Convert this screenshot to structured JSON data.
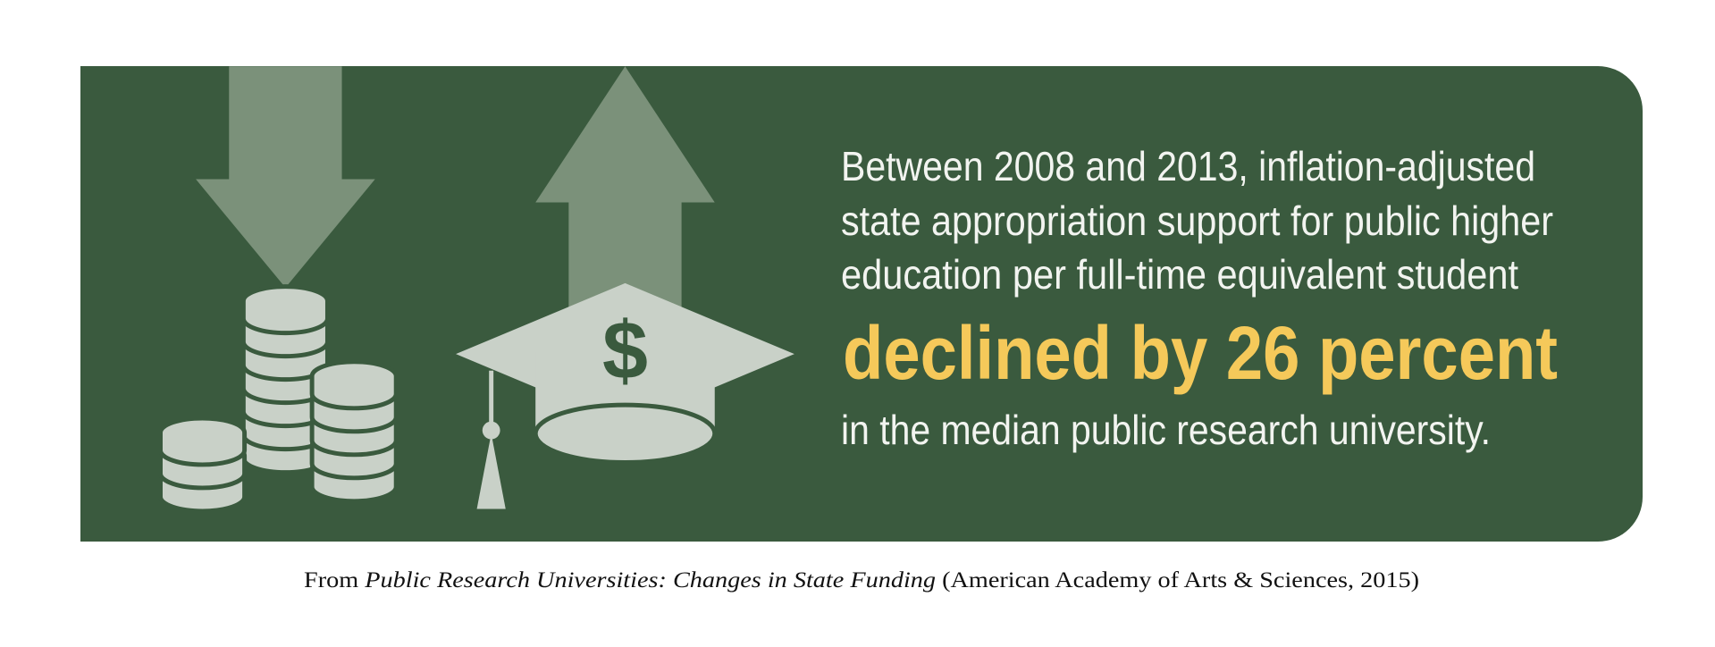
{
  "panel": {
    "icon_symbol": "$",
    "lines": [
      "Between 2008 and 2013, inflation-adjusted",
      "state appropriation support for public higher",
      "education per full-time equivalent student"
    ],
    "highlight": "declined by 26 percent",
    "closing": "in the median public research university."
  },
  "caption": {
    "prefix": "From ",
    "title": "Public Research Universities: Changes in State Funding",
    "suffix": " (American Academy of Arts & Sciences, 2015)"
  }
}
